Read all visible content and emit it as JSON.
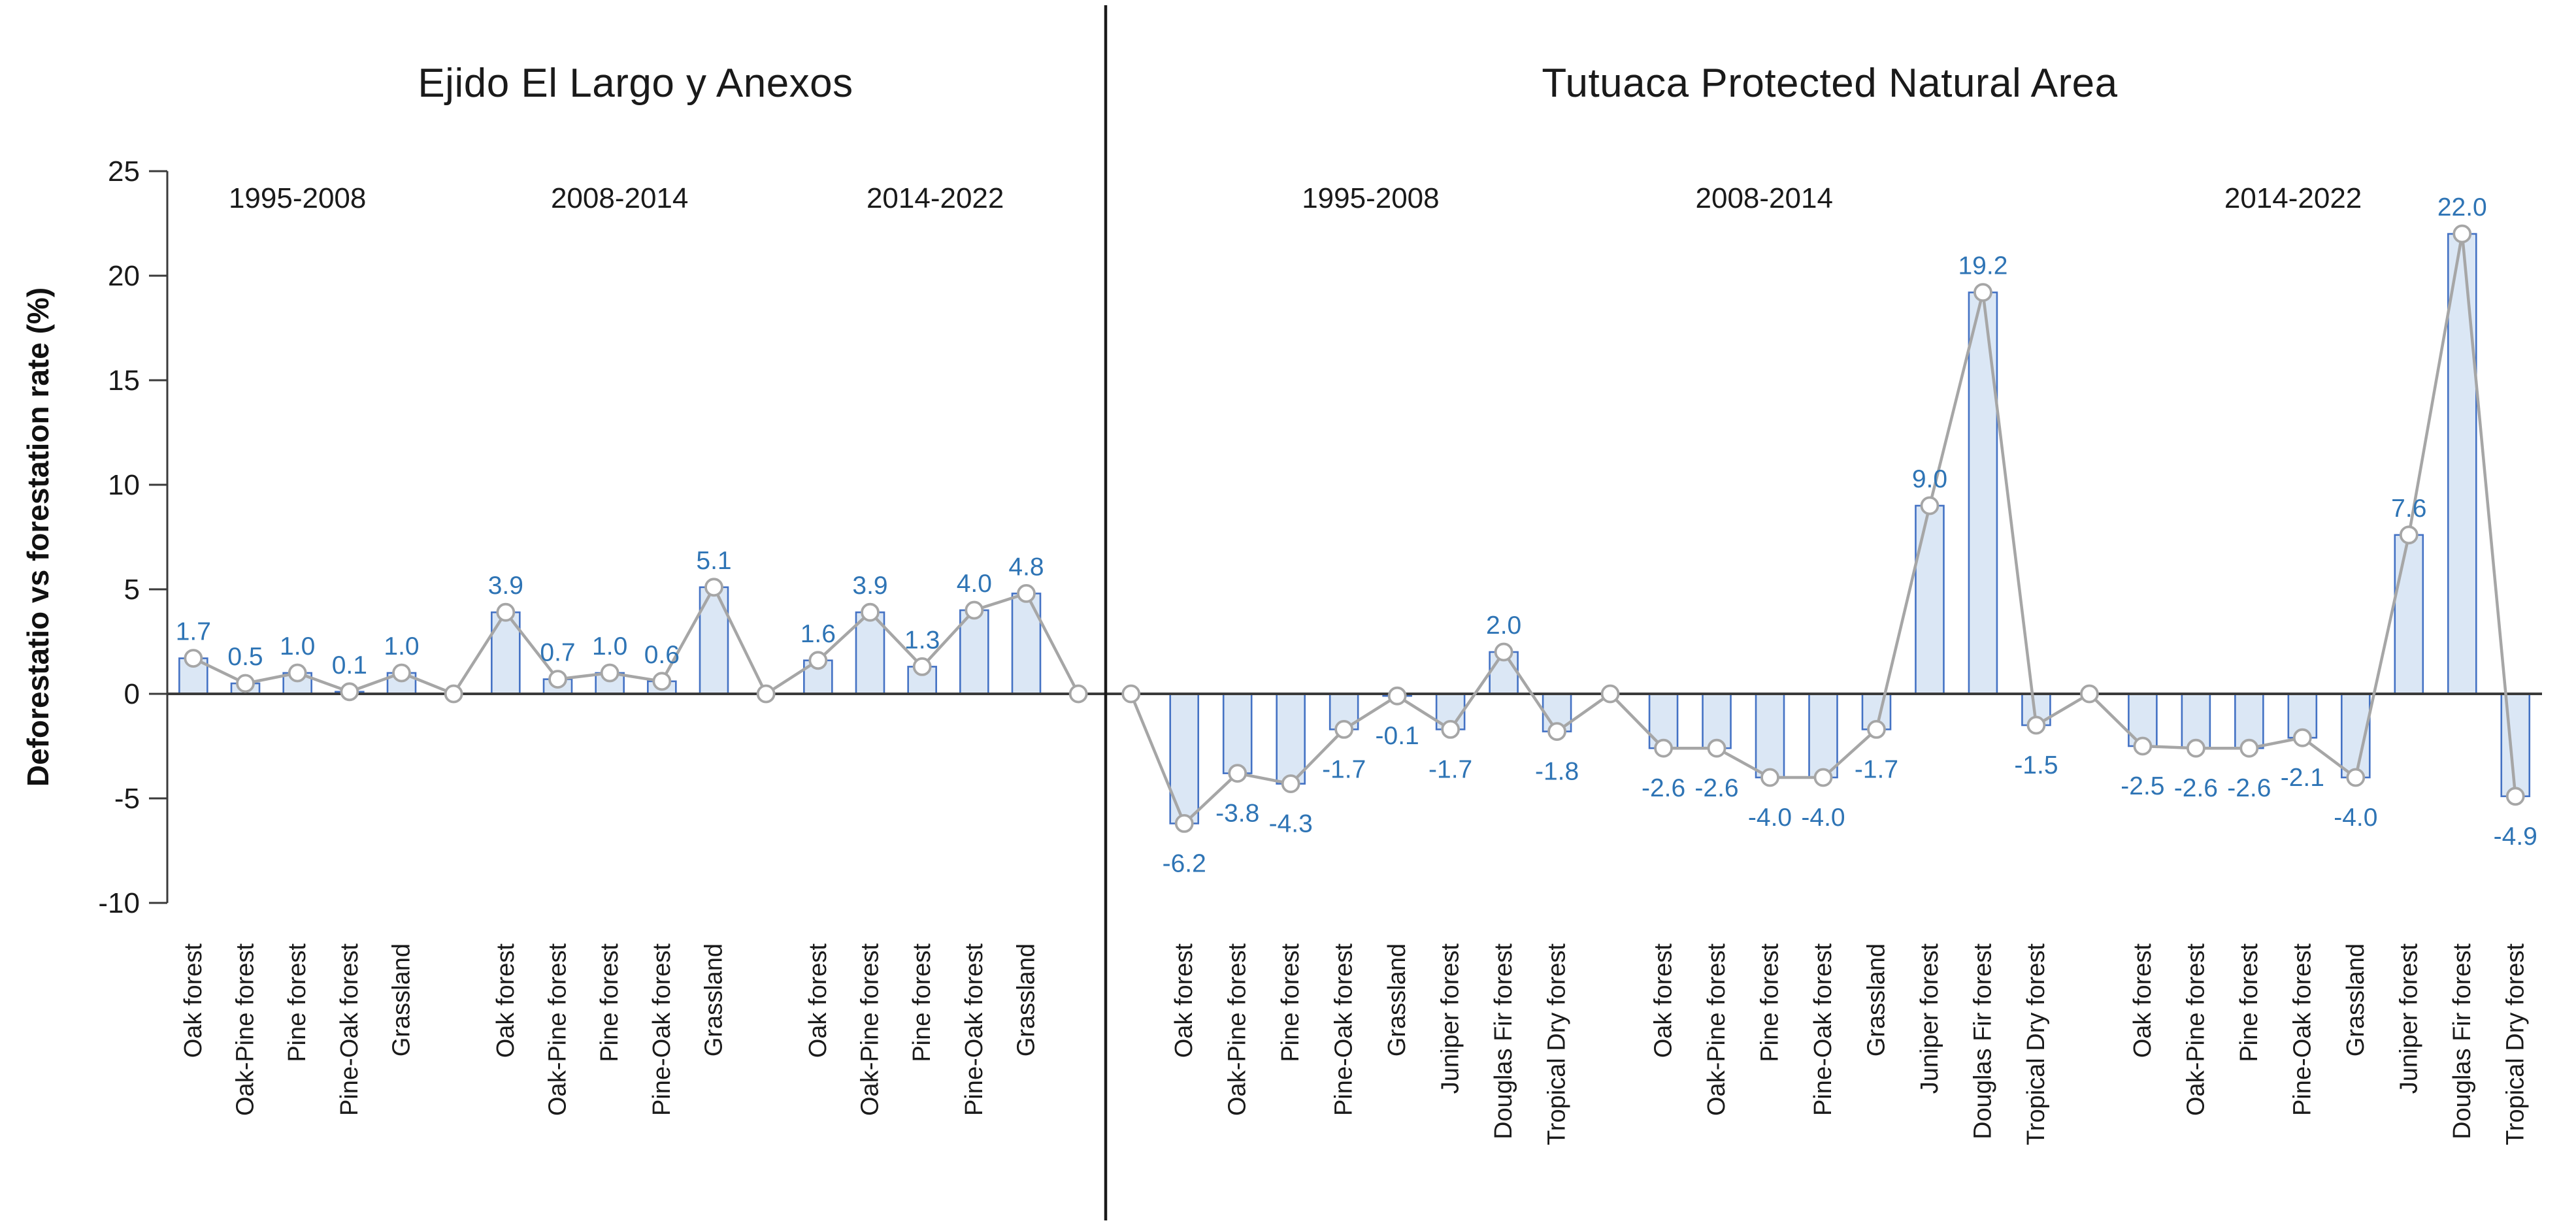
{
  "chart_data": {
    "type": "bar+line",
    "title_left": "Ejido El Largo y Anexos",
    "title_right": "Tutuaca Protected Natural Area",
    "ylabel": "Deforestatio vs forestation rate (%)",
    "ylim": [
      -10,
      25
    ],
    "yticks": [
      25,
      20,
      15,
      10,
      5,
      0,
      -5,
      -10
    ],
    "grid": false,
    "legend": "none",
    "label_decimals": 1,
    "style": {
      "bar_fill": "#dbe7f5",
      "bar_stroke": "#4472c4",
      "line_color": "#a6a6a6",
      "marker_fill": "#ffffff",
      "marker_stroke": "#a6a6a6",
      "data_label_color": "#2e74b5",
      "axis_color": "#3a3a3a",
      "text_color": "#1a1a1a",
      "divider_color": "#1a1a1a"
    },
    "panels": [
      {
        "title": "Ejido El Largo y Anexos",
        "zero_point_before": false,
        "zero_point_between_groups": true,
        "zero_point_after": true,
        "groups": [
          {
            "period": "1995-2008",
            "categories": [
              "Oak forest",
              "Oak-Pine forest",
              "Pine forest",
              "Pine-Oak forest",
              "Grassland"
            ],
            "values": [
              1.7,
              0.5,
              1.0,
              0.1,
              1.0
            ]
          },
          {
            "period": "2008-2014",
            "categories": [
              "Oak forest",
              "Oak-Pine forest",
              "Pine forest",
              "Pine-Oak forest",
              "Grassland"
            ],
            "values": [
              3.9,
              0.7,
              1.0,
              0.6,
              5.1
            ]
          },
          {
            "period": "2014-2022",
            "categories": [
              "Oak forest",
              "Oak-Pine forest",
              "Pine forest",
              "Pine-Oak forest",
              "Grassland"
            ],
            "values": [
              1.6,
              3.9,
              1.3,
              4.0,
              4.8
            ]
          }
        ]
      },
      {
        "title": "Tutuaca Protected Natural Area",
        "zero_point_before": true,
        "zero_point_between_groups": true,
        "zero_point_after": false,
        "groups": [
          {
            "period": "1995-2008",
            "categories": [
              "Oak forest",
              "Oak-Pine forest",
              "Pine forest",
              "Pine-Oak forest",
              "Grassland",
              "Juniper forest",
              "Douglas Fir forest",
              "Tropical Dry forest"
            ],
            "values": [
              -6.2,
              -3.8,
              -4.3,
              -1.7,
              -0.1,
              -1.7,
              2.0,
              -1.8
            ]
          },
          {
            "period": "2008-2014",
            "categories": [
              "Oak forest",
              "Oak-Pine forest",
              "Pine forest",
              "Pine-Oak forest",
              "Grassland",
              "Juniper forest",
              "Douglas Fir forest",
              "Tropical Dry forest"
            ],
            "values": [
              -2.6,
              -2.6,
              -4.0,
              -4.0,
              -1.7,
              9.0,
              19.2,
              -1.5
            ]
          },
          {
            "period": "2014-2022",
            "categories": [
              "Oak forest",
              "Oak-Pine forest",
              "Pine forest",
              "Pine-Oak forest",
              "Grassland",
              "Juniper forest",
              "Douglas Fir forest",
              "Tropical Dry forest"
            ],
            "values": [
              -2.5,
              -2.6,
              -2.6,
              -2.1,
              -4.0,
              7.6,
              22.0,
              -4.9
            ]
          }
        ]
      }
    ]
  }
}
